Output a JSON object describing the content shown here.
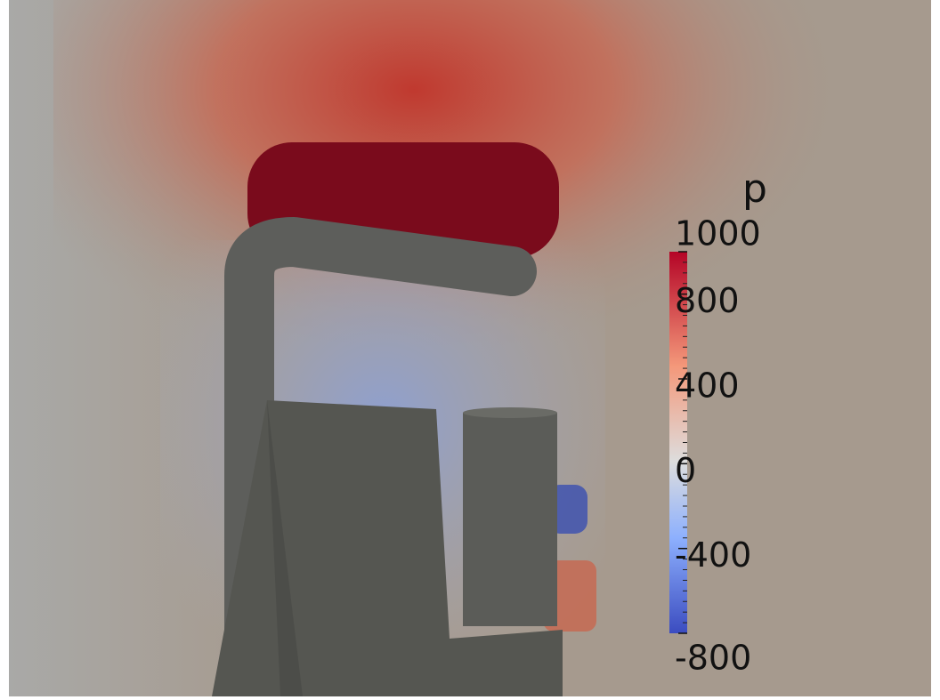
{
  "colorbar": {
    "title": "p",
    "ticks": [
      1000,
      800,
      400,
      0,
      -400,
      -800
    ]
  }
}
